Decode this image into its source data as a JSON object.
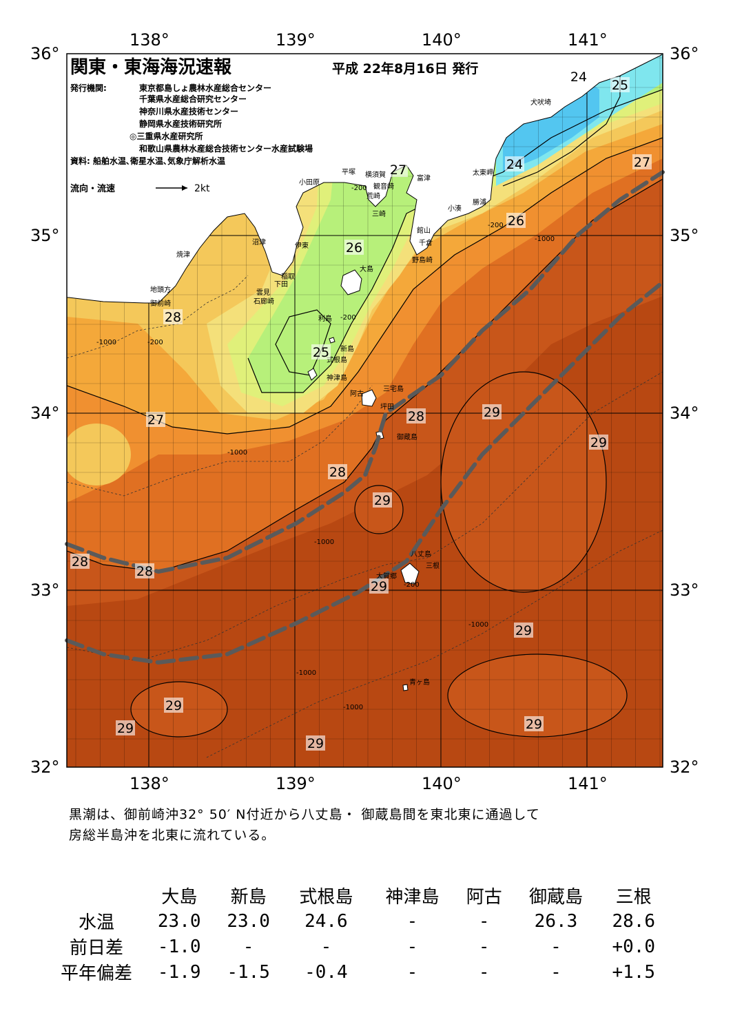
{
  "header": {
    "title": "関東・東海海況速報",
    "issue_date": "平成 22年8月16日 発行",
    "publisher_label": "発行機関:",
    "publishers": [
      "東京都島しょ農林水産総合センター",
      "千葉県水産総合研究センター",
      "神奈川県水産技術センター",
      "静岡県水産技術研究所",
      "◎三重県水産研究所",
      "和歌山県農林水産総合技術センター水産試験場"
    ],
    "sources": "資料: 船舶水温､衛星水温､気象庁解析水温",
    "legend_flow": "流向・流速",
    "legend_speed": "2kt"
  },
  "axes": {
    "lon_labels": [
      "138°",
      "139°",
      "140°",
      "141°"
    ],
    "lat_labels": [
      "36°",
      "35°",
      "34°",
      "33°",
      "32°"
    ]
  },
  "place_names": [
    "犬吠埼",
    "太東岬",
    "勝浦",
    "小湊",
    "富津",
    "館山",
    "千倉",
    "野島崎",
    "横須賀",
    "観音崎",
    "荒崎",
    "三崎",
    "平塚",
    "小田原",
    "沼津",
    "伊東",
    "焼津",
    "稲取",
    "下田",
    "雲見",
    "石廊崎",
    "地頭方",
    "御前崎",
    "大島",
    "利島",
    "新島",
    "式根島",
    "神津島",
    "三宅島",
    "阿古",
    "坪田",
    "御蔵島",
    "八丈島",
    "三根",
    "大賀郷",
    "青ヶ島"
  ],
  "isotherm_labels": [
    "24",
    "25",
    "24",
    "27",
    "26",
    "27",
    "26",
    "25",
    "28",
    "27",
    "28",
    "28",
    "29",
    "29",
    "28",
    "29",
    "28",
    "28",
    "29",
    "29",
    "29",
    "29",
    "29",
    "29"
  ],
  "depth_labels": [
    "-200",
    "-1000"
  ],
  "colors": {
    "c22": "#2f8fe0",
    "c23": "#53c6f0",
    "c24": "#7fe6ee",
    "c25": "#8cf09a",
    "c255": "#b7f07a",
    "c26": "#e0f07a",
    "c265": "#f4e07a",
    "c27": "#f4c85a",
    "c275": "#f4a83a",
    "c28": "#f09030",
    "c285": "#e07022",
    "c29": "#c8561a",
    "c295": "#b84812",
    "land": "#ffffff",
    "kuroshio": "#5a5a5a"
  },
  "summary": {
    "line1": "黒潮は、御前崎沖32° 50′ N付近から八丈島・ 御蔵島間を東北東に通過して",
    "line2": "房総半島沖を北東に流れている。"
  },
  "table": {
    "stations": [
      "大島",
      "新島",
      "式根島",
      "神津島",
      "阿古",
      "御蔵島",
      "三根"
    ],
    "rows": [
      {
        "label": "水温",
        "values": [
          "23.0",
          "23.0",
          "24.6",
          "-",
          "-",
          "26.3",
          "28.6"
        ]
      },
      {
        "label": "前日差",
        "values": [
          "-1.0",
          "-",
          "-",
          "-",
          "-",
          "-",
          "+0.0"
        ]
      },
      {
        "label": "平年偏差",
        "values": [
          "-1.9",
          "-1.5",
          "-0.4",
          "-",
          "-",
          "-",
          "+1.5"
        ]
      }
    ]
  }
}
